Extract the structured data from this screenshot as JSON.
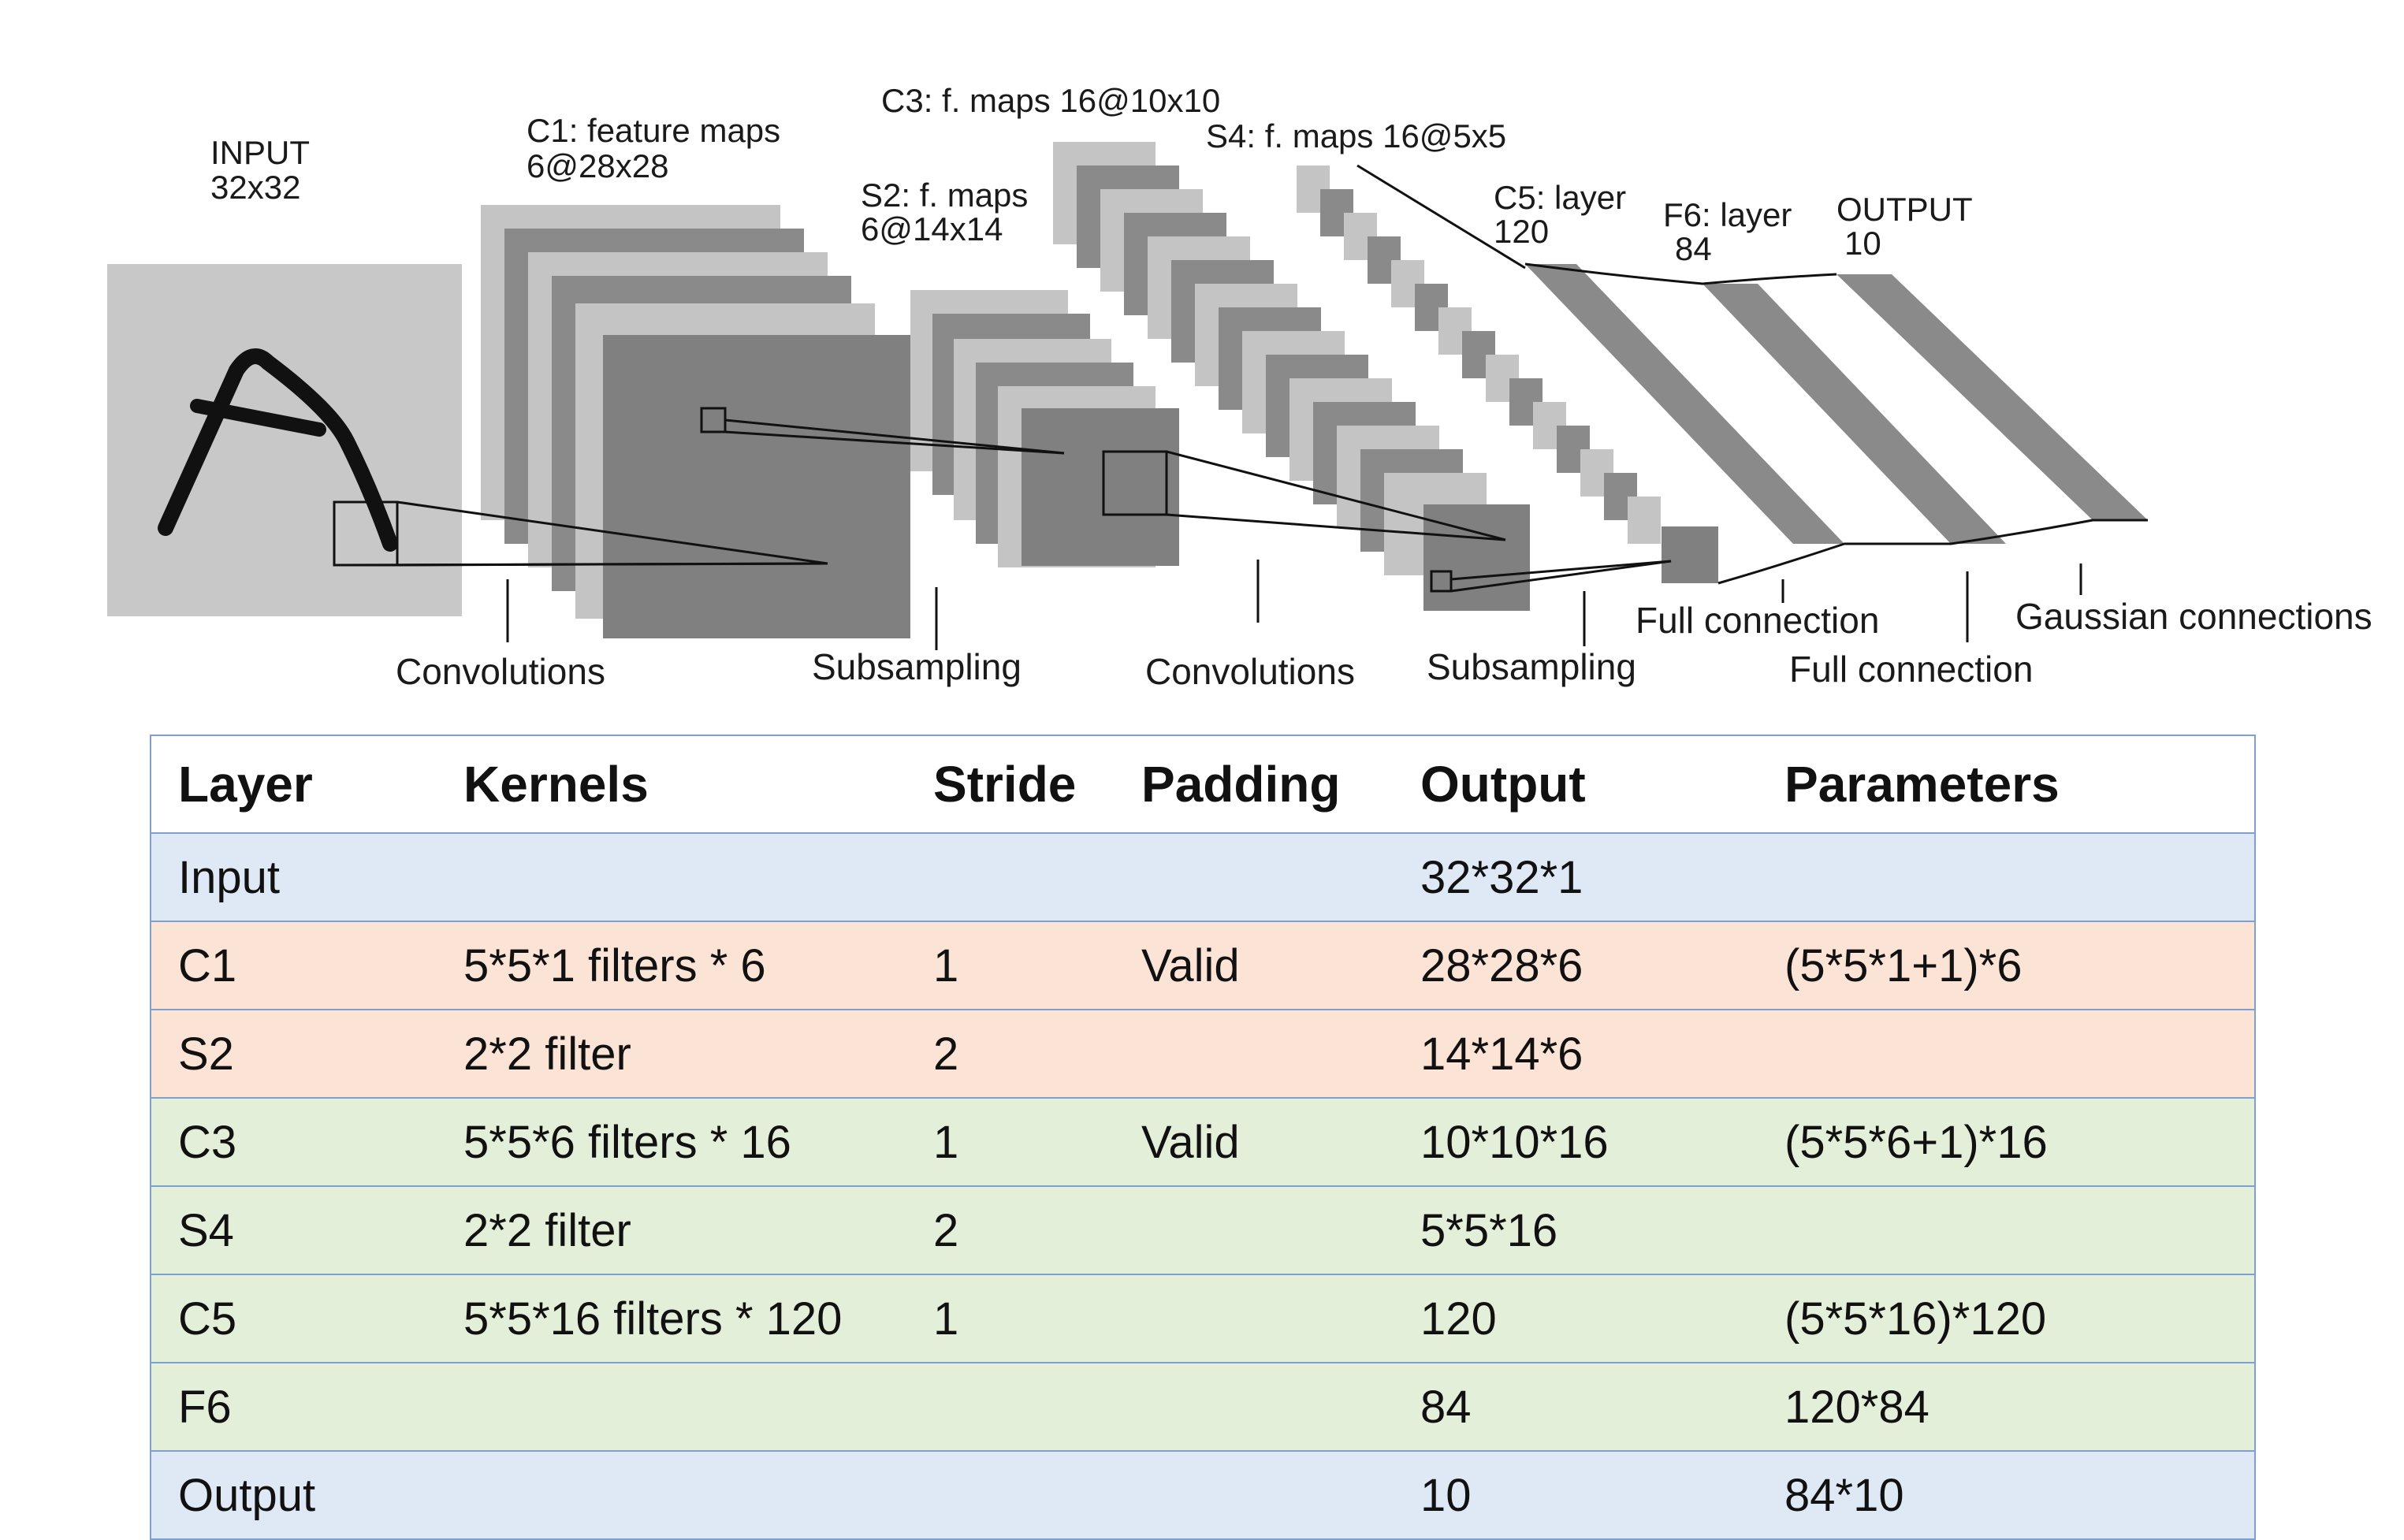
{
  "diagram": {
    "labels": {
      "input": [
        "INPUT",
        "32x32"
      ],
      "c1": [
        "C1: feature maps",
        "6@28x28"
      ],
      "s2": [
        "S2: f. maps",
        "6@14x14"
      ],
      "c3": "C3: f. maps 16@10x10",
      "s4": "S4: f. maps 16@5x5",
      "c5": [
        "C5: layer",
        "120"
      ],
      "f6": [
        "F6: layer",
        "84"
      ],
      "output": [
        "OUTPUT",
        "10"
      ]
    },
    "operations": {
      "conv1": "Convolutions",
      "sub1": "Subsampling",
      "conv2": "Convolutions",
      "sub2": "Subsampling",
      "full1": "Full connection",
      "full2": "Full connection",
      "gauss": "Gaussian connections"
    }
  },
  "table": {
    "headers": [
      "Layer",
      "Kernels",
      "Stride",
      "Padding",
      "Output",
      "Parameters"
    ],
    "rows": [
      {
        "band": "blue",
        "cells": [
          "Input",
          "",
          "",
          "",
          "32*32*1",
          ""
        ]
      },
      {
        "band": "peach",
        "cells": [
          "C1",
          "5*5*1 filters * 6",
          "1",
          "Valid",
          "28*28*6",
          "(5*5*1+1)*6"
        ]
      },
      {
        "band": "peach",
        "cells": [
          "S2",
          "2*2 filter",
          "2",
          "",
          "14*14*6",
          ""
        ]
      },
      {
        "band": "green",
        "cells": [
          "C3",
          "5*5*6 filters * 16",
          "1",
          "Valid",
          "10*10*16",
          "(5*5*6+1)*16"
        ]
      },
      {
        "band": "green",
        "cells": [
          "S4",
          "2*2 filter",
          "2",
          "",
          "5*5*16",
          ""
        ]
      },
      {
        "band": "green",
        "cells": [
          "C5",
          "5*5*16 filters * 120",
          "1",
          "",
          "120",
          "(5*5*16)*120"
        ]
      },
      {
        "band": "green",
        "cells": [
          "F6",
          "",
          "",
          "",
          "84",
          "120*84"
        ]
      },
      {
        "band": "blue",
        "cells": [
          "Output",
          "",
          "",
          "",
          "10",
          "84*10"
        ]
      }
    ],
    "colors": {
      "blue": "#dfe9f6",
      "peach": "#fbe3d6",
      "green": "#e3efd9",
      "border": "#7f9fcf"
    }
  }
}
